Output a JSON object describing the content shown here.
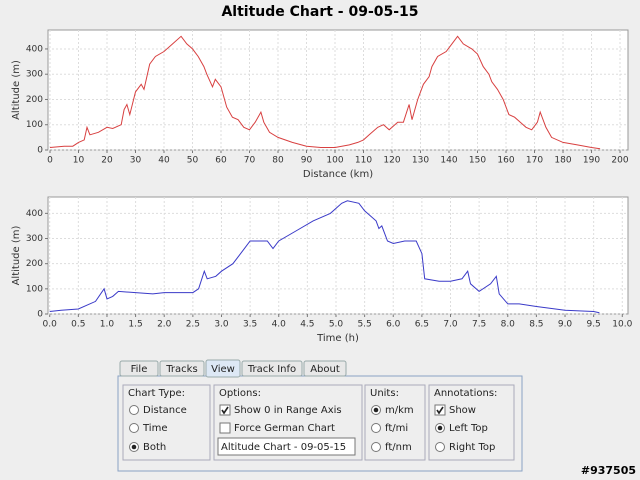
{
  "title": "Altitude Chart - 09-05-15",
  "chart_data": [
    {
      "type": "line",
      "x_label": "Distance (km)",
      "y_label": "Altitude (m)",
      "xlim": [
        -0.7,
        202.8
      ],
      "ylim": [
        0,
        475
      ],
      "xticks": [
        0,
        10,
        20,
        30,
        40,
        50,
        60,
        70,
        80,
        90,
        100,
        110,
        120,
        130,
        140,
        150,
        160,
        170,
        180,
        190,
        200
      ],
      "yticks": [
        0,
        100,
        200,
        300,
        400
      ],
      "grid": true,
      "series": [
        {
          "color": "#d84040",
          "x": [
            0,
            5,
            8,
            10,
            12,
            13,
            14,
            17,
            20,
            22,
            25,
            26,
            27,
            28,
            30,
            32,
            33,
            35,
            37,
            40,
            43,
            46,
            48,
            50,
            52,
            54,
            55,
            57,
            58,
            60,
            62,
            64,
            66,
            68,
            70,
            72,
            74,
            75,
            77,
            80,
            85,
            90,
            95,
            100,
            105,
            108,
            110,
            112,
            115,
            117,
            119,
            122,
            124,
            126,
            127,
            129,
            131,
            133,
            134,
            136,
            139,
            141,
            143,
            145,
            148,
            150,
            152,
            154,
            155,
            157,
            159,
            161,
            163,
            165,
            167,
            169,
            171,
            172,
            174,
            176,
            180,
            185,
            190,
            193
          ],
          "values": [
            10,
            15,
            15,
            30,
            40,
            90,
            60,
            70,
            90,
            85,
            100,
            160,
            180,
            140,
            230,
            260,
            240,
            340,
            370,
            390,
            420,
            450,
            420,
            400,
            370,
            330,
            300,
            250,
            280,
            250,
            170,
            130,
            120,
            90,
            80,
            110,
            150,
            110,
            70,
            50,
            30,
            15,
            10,
            10,
            20,
            30,
            40,
            60,
            90,
            100,
            80,
            110,
            110,
            180,
            120,
            200,
            260,
            290,
            330,
            370,
            390,
            420,
            450,
            420,
            400,
            380,
            330,
            300,
            270,
            240,
            200,
            140,
            130,
            110,
            90,
            80,
            110,
            150,
            90,
            50,
            30,
            20,
            10,
            5
          ]
        }
      ]
    },
    {
      "type": "line",
      "x_label": "Time (h)",
      "y_label": "Altitude (m)",
      "xlim": [
        -0.03,
        10.1
      ],
      "ylim": [
        0,
        465
      ],
      "xticks": [
        {
          "value": 0,
          "label": "0.0"
        },
        0.5,
        {
          "value": 1,
          "label": "1.0"
        },
        1.5,
        {
          "value": 2,
          "label": "2.0"
        },
        2.5,
        {
          "value": 3,
          "label": "3.0"
        },
        3.5,
        {
          "value": 4,
          "label": "4.0"
        },
        4.5,
        {
          "value": 5,
          "label": "5.0"
        },
        5.5,
        {
          "value": 6,
          "label": "6.0"
        },
        6.5,
        {
          "value": 7,
          "label": "7.0"
        },
        7.5,
        {
          "value": 8,
          "label": "8.0"
        },
        8.5,
        {
          "value": 9,
          "label": "9.0"
        },
        9.5,
        {
          "value": 10,
          "label": "10.0"
        }
      ],
      "yticks": [
        0,
        100,
        200,
        300,
        400
      ],
      "grid": true,
      "series": [
        {
          "color": "#3a3ac8",
          "x": [
            0,
            0.2,
            0.5,
            0.8,
            0.95,
            1.0,
            1.1,
            1.2,
            1.5,
            1.8,
            2.0,
            2.5,
            2.6,
            2.7,
            2.75,
            2.9,
            3.0,
            3.2,
            3.4,
            3.5,
            3.8,
            3.9,
            4.0,
            4.3,
            4.6,
            4.9,
            5.1,
            5.2,
            5.4,
            5.5,
            5.7,
            5.75,
            5.8,
            5.9,
            6.0,
            6.2,
            6.4,
            6.5,
            6.55,
            6.8,
            7.0,
            7.2,
            7.3,
            7.35,
            7.5,
            7.7,
            7.8,
            7.85,
            8.0,
            8.2,
            8.5,
            9.0,
            9.5,
            9.6
          ],
          "values": [
            10,
            15,
            20,
            50,
            100,
            60,
            70,
            90,
            85,
            80,
            85,
            85,
            100,
            170,
            140,
            150,
            170,
            200,
            260,
            290,
            290,
            260,
            290,
            330,
            370,
            400,
            440,
            450,
            440,
            410,
            370,
            340,
            350,
            290,
            280,
            290,
            290,
            240,
            140,
            130,
            130,
            140,
            170,
            120,
            90,
            120,
            150,
            80,
            40,
            40,
            30,
            15,
            10,
            5
          ]
        }
      ]
    }
  ],
  "panel": {
    "tabs": [
      {
        "label": "File",
        "selected": false
      },
      {
        "label": "Tracks",
        "selected": false
      },
      {
        "label": "View",
        "selected": true
      },
      {
        "label": "Track Info",
        "selected": false
      },
      {
        "label": "About",
        "selected": false
      }
    ],
    "groups": [
      {
        "title": "Chart Type:",
        "items": [
          {
            "label": "Distance",
            "kind": "radio",
            "checked": false
          },
          {
            "label": "Time",
            "kind": "radio",
            "checked": false
          },
          {
            "label": "Both",
            "kind": "radio",
            "checked": true
          }
        ]
      },
      {
        "title": "Options:",
        "items": [
          {
            "label": "Show 0 in Range Axis",
            "kind": "checkbox",
            "checked": true
          },
          {
            "label": "Force German Chart",
            "kind": "checkbox",
            "checked": false
          }
        ],
        "text_field": "Altitude Chart - 09-05-15"
      },
      {
        "title": "Units:",
        "items": [
          {
            "label": "m/km",
            "kind": "radio",
            "checked": true
          },
          {
            "label": "ft/mi",
            "kind": "radio",
            "checked": false
          },
          {
            "label": "ft/nm",
            "kind": "radio",
            "checked": false
          }
        ]
      },
      {
        "title": "Annotations:",
        "items": [
          {
            "label": "Show",
            "kind": "checkbox",
            "checked": true
          },
          {
            "label": "Left Top",
            "kind": "radio",
            "checked": true
          },
          {
            "label": "Right Top",
            "kind": "radio",
            "checked": false
          }
        ]
      }
    ]
  },
  "footer_id": "#937505"
}
